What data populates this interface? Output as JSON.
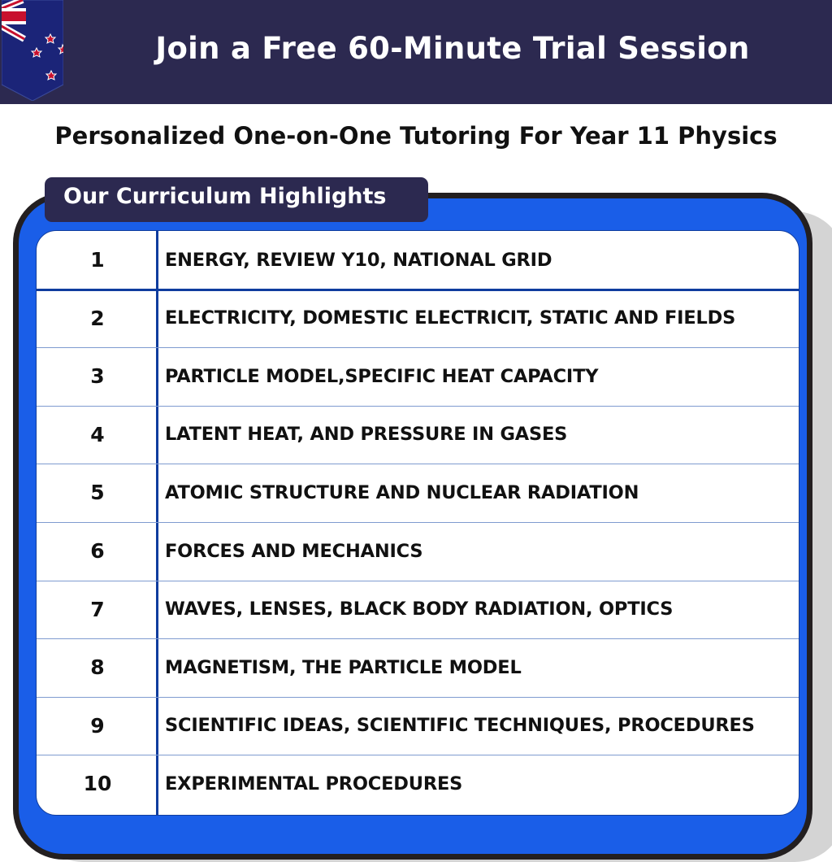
{
  "header": {
    "title": "Join a Free 60-Minute Trial Session",
    "flag_icon": "new-zealand-flag-icon"
  },
  "subtitle": "Personalized One-on-One Tutoring For Year 11 Physics",
  "section_tab": "Our Curriculum Highlights",
  "colors": {
    "header_bg": "#2c2950",
    "frame_blue": "#1a5ee8",
    "line_blue": "#0f3c9e"
  },
  "curriculum": [
    {
      "num": "1",
      "topic": "ENERGY, REVIEW Y10, NATIONAL GRID"
    },
    {
      "num": "2",
      "topic": "ELECTRICITY, DOMESTIC ELECTRICIT, STATIC AND FIELDS"
    },
    {
      "num": "3",
      "topic": "PARTICLE MODEL,SPECIFIC HEAT CAPACITY"
    },
    {
      "num": "4",
      "topic": "LATENT HEAT, AND PRESSURE IN GASES"
    },
    {
      "num": "5",
      "topic": "ATOMIC STRUCTURE AND NUCLEAR RADIATION"
    },
    {
      "num": "6",
      "topic": "FORCES AND MECHANICS"
    },
    {
      "num": "7",
      "topic": "WAVES,  LENSES, BLACK BODY RADIATION, OPTICS"
    },
    {
      "num": "8",
      "topic": "MAGNETISM, THE PARTICLE MODEL"
    },
    {
      "num": "9",
      "topic": "SCIENTIFIC IDEAS, SCIENTIFIC TECHNIQUES, PROCEDURES"
    },
    {
      "num": "10",
      "topic": "EXPERIMENTAL PROCEDURES"
    }
  ]
}
